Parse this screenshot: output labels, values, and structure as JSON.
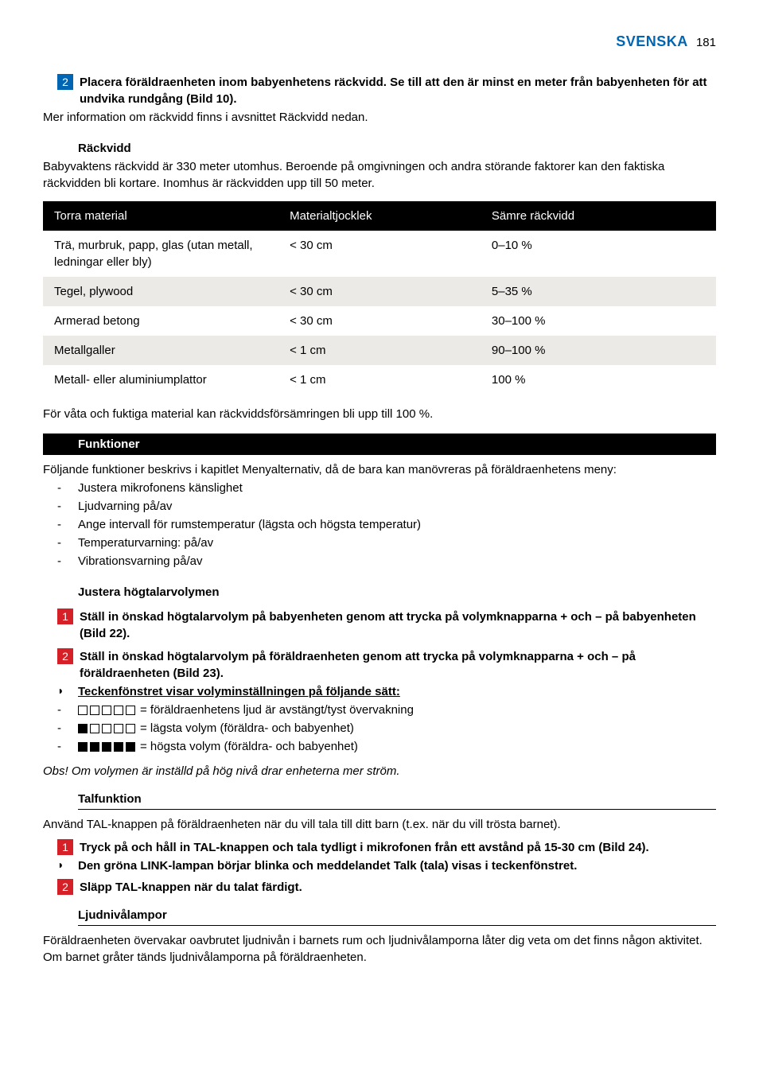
{
  "header": {
    "lang": "SVENSKA",
    "page": "181"
  },
  "topStep": {
    "num": "2",
    "text": "Placera föräldraenheten inom babyenhetens räckvidd. Se till att den är minst en meter från babyenheten för att undvika rundgång (Bild 10)."
  },
  "topPlain": "Mer information om räckvidd finns i avsnittet Räckvidd nedan.",
  "range": {
    "heading": "Räckvidd",
    "text": "Babyvaktens räckvidd är 330 meter utomhus. Beroende på omgivningen och andra störande faktorer kan den faktiska räckvidden bli kortare. Inomhus är räckvidden upp till 50 meter."
  },
  "table": {
    "headers": [
      "Torra material",
      "Materialtjocklek",
      "Sämre räckvidd"
    ],
    "rows": [
      {
        "c": [
          "Trä, murbruk, papp, glas (utan metall, ledningar eller bly)",
          "< 30 cm",
          "0–10 %"
        ],
        "alt": false
      },
      {
        "c": [
          "Tegel, plywood",
          "< 30 cm",
          "5–35 %"
        ],
        "alt": true
      },
      {
        "c": [
          "Armerad betong",
          "< 30 cm",
          "30–100 %"
        ],
        "alt": false
      },
      {
        "c": [
          "Metallgaller",
          "< 1 cm",
          "90–100 %"
        ],
        "alt": true
      },
      {
        "c": [
          "Metall- eller aluminiumplattor",
          "< 1 cm",
          "100 %"
        ],
        "alt": false
      }
    ]
  },
  "tableNote": "För våta och fuktiga material kan räckviddsförsämringen bli upp till 100 %.",
  "functions": {
    "bar": "Funktioner",
    "intro": "Följande funktioner beskrivs i kapitlet Menyalternativ, då de bara kan manövreras på föräldraenhetens meny:",
    "items": [
      "Justera mikrofonens känslighet",
      "Ljudvarning på/av",
      "Ange intervall för rumstemperatur (lägsta och högsta temperatur)",
      "Temperaturvarning: på/av",
      "Vibrationsvarning på/av"
    ]
  },
  "volume": {
    "heading": "Justera högtalarvolymen",
    "step1": {
      "num": "1",
      "text": "Ställ in önskad högtalarvolym på babyenheten genom att trycka på volymknapparna + och – på babyenheten (Bild 22)."
    },
    "step2": {
      "num": "2",
      "text": "Ställ in önskad högtalarvolym på föräldraenheten genom att trycka på volymknapparna + och – på föräldraenheten (Bild 23)."
    },
    "bullet": "Teckenfönstret visar volyminställningen på följande sätt:",
    "rows": [
      {
        "fill": [
          false,
          false,
          false,
          false,
          false
        ],
        "label": "= föräldraenhetens ljud är avstängt/tyst övervakning"
      },
      {
        "fill": [
          true,
          false,
          false,
          false,
          false
        ],
        "label": "= lägsta volym (föräldra- och babyenhet)"
      },
      {
        "fill": [
          true,
          true,
          true,
          true,
          true
        ],
        "label": "= högsta volym (föräldra- och babyenhet)"
      }
    ],
    "note": "Obs! Om volymen är inställd på hög nivå drar enheterna mer ström."
  },
  "talk": {
    "heading": "Talfunktion",
    "intro": "Använd TAL-knappen på föräldraenheten när du vill tala till ditt barn (t.ex. när du vill trösta barnet).",
    "step1": {
      "num": "1",
      "text": "Tryck på och håll in TAL-knappen och tala tydligt i mikrofonen från ett avstånd på 15-30 cm (Bild 24)."
    },
    "bullet": "Den gröna LINK-lampan börjar blinka och meddelandet Talk (tala) visas i teckenfönstret.",
    "step2": {
      "num": "2",
      "text": "Släpp TAL-knappen när du talat färdigt."
    }
  },
  "level": {
    "heading": "Ljudnivålampor",
    "text": "Föräldraenheten övervakar oavbrutet ljudnivån i barnets rum och ljudnivålamporna låter dig veta om det finns någon aktivitet. Om barnet gråter tänds ljudnivålamporna på föräldraenheten."
  }
}
